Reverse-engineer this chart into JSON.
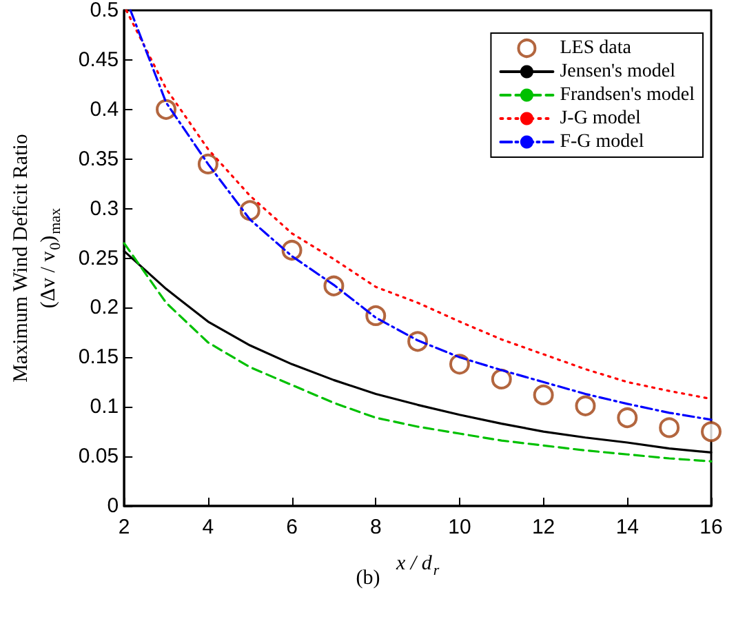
{
  "chart_data": {
    "type": "line",
    "xlabel": "x / d$_{r}$",
    "ylabel": "Maximum Wind Deficit Ratio\n(Δv / v$_{0}$)$_{max}$",
    "annotations": [
      "(b)"
    ],
    "xlim": [
      2,
      16
    ],
    "xticks": [
      2,
      4,
      6,
      8,
      10,
      12,
      14,
      16
    ],
    "ylim": [
      0,
      0.5
    ],
    "yticks": [
      0,
      0.05,
      0.1,
      0.15,
      0.2,
      0.25,
      0.3,
      0.35,
      0.4,
      0.45,
      0.5
    ],
    "grid": false,
    "legend": "top right",
    "series": [
      {
        "name": "LES data",
        "type": "scatter",
        "marker": "circle",
        "color": "#a0400f",
        "x": [
          3,
          4,
          5,
          6,
          7,
          8,
          9,
          10,
          11,
          12,
          13,
          14,
          15,
          16
        ],
        "values": [
          0.4,
          0.345,
          0.298,
          0.258,
          0.222,
          0.192,
          0.166,
          0.143,
          0.128,
          0.112,
          0.101,
          0.089,
          0.079,
          0.075
        ]
      },
      {
        "name": "Jensen's model",
        "line_style": "solid",
        "color": "#000000",
        "x": [
          2,
          3,
          4,
          5,
          6,
          7,
          8,
          9,
          10,
          11,
          12,
          13,
          14,
          15,
          16
        ],
        "values": [
          0.257,
          0.219,
          0.186,
          0.162,
          0.143,
          0.127,
          0.113,
          0.102,
          0.092,
          0.083,
          0.075,
          0.069,
          0.064,
          0.058,
          0.054
        ]
      },
      {
        "name": "Frandsen's model",
        "line_style": "dashed",
        "color": "#00c000",
        "x": [
          2,
          3,
          4,
          5,
          6,
          7,
          8,
          9,
          10,
          11,
          12,
          13,
          14,
          15,
          16
        ],
        "values": [
          0.265,
          0.205,
          0.165,
          0.14,
          0.122,
          0.104,
          0.089,
          0.08,
          0.073,
          0.066,
          0.061,
          0.056,
          0.052,
          0.048,
          0.045
        ]
      },
      {
        "name": "J-G model",
        "line_style": "dotted",
        "color": "#ff0000",
        "x": [
          2.05,
          3,
          4,
          5,
          6,
          7,
          8,
          9,
          10,
          11,
          12,
          13,
          14,
          15,
          16
        ],
        "values": [
          0.5,
          0.421,
          0.36,
          0.313,
          0.275,
          0.249,
          0.221,
          0.205,
          0.186,
          0.168,
          0.153,
          0.138,
          0.125,
          0.116,
          0.108
        ]
      },
      {
        "name": "F-G model",
        "line_style": "dashdot",
        "color": "#0000ff",
        "x": [
          2.15,
          3,
          4,
          5,
          6,
          7,
          8,
          9,
          10,
          11,
          12,
          13,
          14,
          15,
          16
        ],
        "values": [
          0.5,
          0.407,
          0.345,
          0.289,
          0.252,
          0.223,
          0.19,
          0.167,
          0.15,
          0.137,
          0.125,
          0.113,
          0.103,
          0.094,
          0.087
        ]
      }
    ]
  }
}
